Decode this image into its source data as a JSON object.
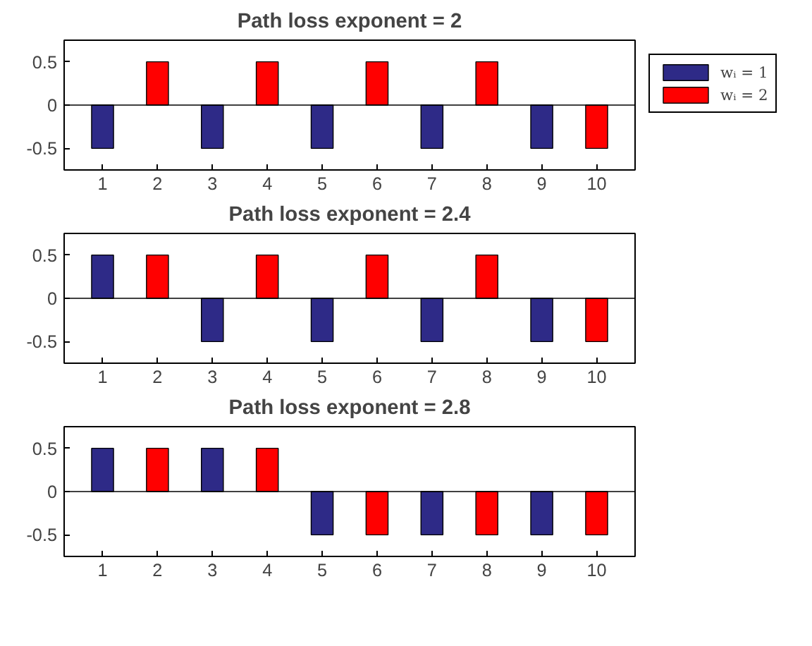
{
  "chart_data": [
    {
      "type": "bar",
      "title": "Path loss exponent = 2",
      "categories": [
        "1",
        "2",
        "3",
        "4",
        "5",
        "6",
        "7",
        "8",
        "9",
        "10"
      ],
      "ylim": [
        -0.75,
        0.75
      ],
      "yticks": [
        -0.5,
        0,
        0.5
      ],
      "grid": false,
      "ref_lines": [
        {
          "axis": "y",
          "value": 0,
          "color": "#000000"
        }
      ],
      "legend": "top right",
      "series": [
        {
          "name": "wᵢ = 1",
          "color": "#2e2a87",
          "values": [
            -0.5,
            null,
            -0.5,
            null,
            -0.5,
            null,
            -0.5,
            null,
            -0.5,
            null
          ]
        },
        {
          "name": "wᵢ = 2",
          "color": "#ff0000",
          "values": [
            null,
            0.5,
            null,
            0.5,
            null,
            0.5,
            null,
            0.5,
            null,
            -0.5
          ]
        }
      ]
    },
    {
      "type": "bar",
      "title": "Path loss exponent = 2.4",
      "categories": [
        "1",
        "2",
        "3",
        "4",
        "5",
        "6",
        "7",
        "8",
        "9",
        "10"
      ],
      "ylim": [
        -0.75,
        0.75
      ],
      "yticks": [
        -0.5,
        0,
        0.5
      ],
      "grid": false,
      "ref_lines": [
        {
          "axis": "y",
          "value": 0,
          "color": "#000000"
        }
      ],
      "series": [
        {
          "color": "#2e2a87",
          "values": [
            0.5,
            null,
            -0.5,
            null,
            -0.5,
            null,
            -0.5,
            null,
            -0.5,
            null
          ]
        },
        {
          "color": "#ff0000",
          "values": [
            null,
            0.5,
            null,
            0.5,
            null,
            0.5,
            null,
            0.5,
            null,
            -0.5
          ]
        }
      ]
    },
    {
      "type": "bar",
      "title": "Path loss exponent = 2.8",
      "categories": [
        "1",
        "2",
        "3",
        "4",
        "5",
        "6",
        "7",
        "8",
        "9",
        "10"
      ],
      "ylim": [
        -0.75,
        0.75
      ],
      "yticks": [
        -0.5,
        0,
        0.5
      ],
      "grid": false,
      "ref_lines": [
        {
          "axis": "y",
          "value": 0,
          "color": "#000000"
        }
      ],
      "series": [
        {
          "color": "#2e2a87",
          "values": [
            0.5,
            null,
            0.5,
            null,
            -0.5,
            null,
            -0.5,
            null,
            -0.5,
            null
          ]
        },
        {
          "color": "#ff0000",
          "values": [
            null,
            0.5,
            null,
            0.5,
            null,
            -0.5,
            null,
            -0.5,
            null,
            -0.5
          ]
        }
      ]
    }
  ]
}
